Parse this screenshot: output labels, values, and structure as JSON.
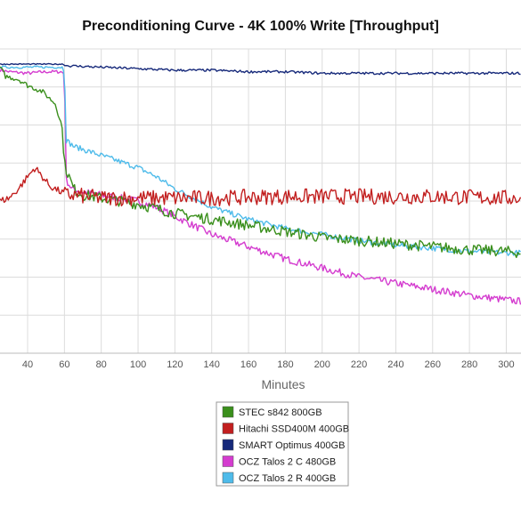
{
  "chart_data": {
    "type": "line",
    "title": "Preconditioning Curve - 4K 100% Write [Throughput]",
    "xlabel": "Minutes",
    "ylabel": "",
    "x_ticks": [
      40,
      60,
      80,
      100,
      120,
      140,
      160,
      180,
      200,
      220,
      240,
      260,
      280,
      300
    ],
    "xlim": [
      25,
      308
    ],
    "ylim": [
      0,
      100
    ],
    "grid": true,
    "legend_position": "bottom-right",
    "series": [
      {
        "name": "STEC s842 800GB",
        "color": "#3a8f1c",
        "points": [
          [
            25,
            94
          ],
          [
            28,
            91
          ],
          [
            35,
            90
          ],
          [
            40,
            88
          ],
          [
            48,
            86
          ],
          [
            55,
            82
          ],
          [
            58,
            76
          ],
          [
            59,
            73
          ],
          [
            60,
            62
          ],
          [
            65,
            54
          ],
          [
            70,
            52
          ],
          [
            80,
            51
          ],
          [
            90,
            50
          ],
          [
            100,
            49
          ],
          [
            120,
            46
          ],
          [
            140,
            44
          ],
          [
            160,
            42
          ],
          [
            180,
            40
          ],
          [
            200,
            38
          ],
          [
            220,
            37
          ],
          [
            240,
            36
          ],
          [
            260,
            35
          ],
          [
            280,
            34
          ],
          [
            300,
            33.5
          ],
          [
            308,
            33
          ]
        ],
        "noise": 1.8
      },
      {
        "name": "Hitachi SSD400M 400GB",
        "color": "#c21f1f",
        "points": [
          [
            25,
            50
          ],
          [
            30,
            51
          ],
          [
            35,
            54
          ],
          [
            40,
            58
          ],
          [
            44,
            61
          ],
          [
            48,
            58
          ],
          [
            52,
            55
          ],
          [
            58,
            53
          ],
          [
            61,
            52
          ],
          [
            65,
            52
          ],
          [
            80,
            51
          ],
          [
            100,
            51
          ],
          [
            140,
            51
          ],
          [
            180,
            51.5
          ],
          [
            220,
            51.5
          ],
          [
            260,
            51.5
          ],
          [
            300,
            51
          ],
          [
            308,
            51
          ]
        ],
        "noise": 2.6
      },
      {
        "name": "SMART Optimus 400GB",
        "color": "#16297a",
        "points": [
          [
            25,
            95
          ],
          [
            60,
            95
          ],
          [
            61,
            94.5
          ],
          [
            80,
            94
          ],
          [
            100,
            93.5
          ],
          [
            120,
            93
          ],
          [
            140,
            93
          ],
          [
            160,
            92.5
          ],
          [
            180,
            92.5
          ],
          [
            200,
            92
          ],
          [
            240,
            92
          ],
          [
            280,
            92
          ],
          [
            308,
            92
          ]
        ],
        "noise": 0.4
      },
      {
        "name": "OCZ Talos 2 C 480GB",
        "color": "#d43ccf",
        "points": [
          [
            25,
            93
          ],
          [
            30,
            92.5
          ],
          [
            40,
            92
          ],
          [
            50,
            92.5
          ],
          [
            58,
            92.5
          ],
          [
            60,
            92
          ],
          [
            61,
            57
          ],
          [
            64,
            54
          ],
          [
            70,
            53
          ],
          [
            80,
            52
          ],
          [
            90,
            51
          ],
          [
            100,
            50
          ],
          [
            110,
            48
          ],
          [
            120,
            45
          ],
          [
            140,
            39
          ],
          [
            160,
            35
          ],
          [
            180,
            31
          ],
          [
            200,
            28
          ],
          [
            220,
            25
          ],
          [
            240,
            23
          ],
          [
            260,
            21
          ],
          [
            280,
            19
          ],
          [
            300,
            17.5
          ],
          [
            308,
            17
          ]
        ],
        "noise": 1.2
      },
      {
        "name": "OCZ Talos 2 R 400GB",
        "color": "#4ebbea",
        "points": [
          [
            25,
            94
          ],
          [
            40,
            94
          ],
          [
            59,
            94
          ],
          [
            60,
            93
          ],
          [
            61,
            70
          ],
          [
            65,
            68
          ],
          [
            70,
            67
          ],
          [
            80,
            65
          ],
          [
            90,
            63
          ],
          [
            100,
            61
          ],
          [
            110,
            58
          ],
          [
            120,
            54
          ],
          [
            140,
            48
          ],
          [
            160,
            44
          ],
          [
            180,
            41
          ],
          [
            200,
            39
          ],
          [
            220,
            37
          ],
          [
            240,
            35.5
          ],
          [
            260,
            34.5
          ],
          [
            280,
            33.5
          ],
          [
            300,
            33
          ],
          [
            308,
            33
          ]
        ],
        "noise": 0.9
      }
    ]
  }
}
